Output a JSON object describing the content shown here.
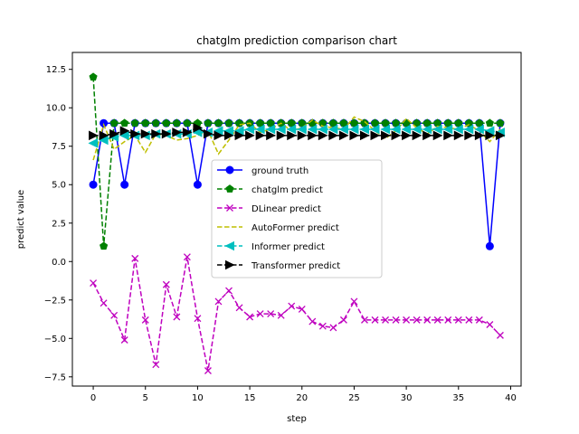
{
  "chart_data": {
    "type": "line",
    "title": "chatglm prediction comparison chart",
    "xlabel": "step",
    "ylabel": "predict value",
    "xlim": [
      -2,
      41
    ],
    "ylim": [
      -8.1,
      13.6
    ],
    "xticks": [
      0,
      5,
      10,
      15,
      20,
      25,
      30,
      35,
      40
    ],
    "yticks": [
      -7.5,
      -5.0,
      -2.5,
      0.0,
      2.5,
      5.0,
      7.5,
      10.0,
      12.5
    ],
    "xtick_labels": [
      "0",
      "5",
      "10",
      "15",
      "20",
      "25",
      "30",
      "35",
      "40"
    ],
    "ytick_labels": [
      "−7.5",
      "−5.0",
      "−2.5",
      "0.0",
      "2.5",
      "5.0",
      "7.5",
      "10.0",
      "12.5"
    ],
    "grid": false,
    "legend_position": "center-right",
    "x": [
      0,
      1,
      2,
      3,
      4,
      5,
      6,
      7,
      8,
      9,
      10,
      11,
      12,
      13,
      14,
      15,
      16,
      17,
      18,
      19,
      20,
      21,
      22,
      23,
      24,
      25,
      26,
      27,
      28,
      29,
      30,
      31,
      32,
      33,
      34,
      35,
      36,
      37,
      38,
      39
    ],
    "series": [
      {
        "name": "ground truth",
        "color": "#0000ff",
        "linestyle": "solid",
        "marker": "circle",
        "values": [
          5,
          9,
          9,
          5,
          9,
          9,
          9,
          9,
          9,
          9,
          5,
          9,
          9,
          9,
          9,
          9,
          9,
          9,
          9,
          9,
          9,
          9,
          9,
          9,
          9,
          9,
          9,
          9,
          9,
          9,
          9,
          9,
          9,
          9,
          9,
          9,
          9,
          9,
          1,
          9
        ]
      },
      {
        "name": "chatglm predict",
        "color": "#008000",
        "linestyle": "dashed",
        "marker": "pentagon",
        "values": [
          12,
          1,
          9,
          9,
          9,
          9,
          9,
          9,
          9,
          9,
          9,
          9,
          9,
          9,
          9,
          9,
          9,
          9,
          9,
          9,
          9,
          9,
          9,
          9,
          9,
          9,
          9,
          9,
          9,
          9,
          9,
          9,
          9,
          9,
          9,
          9,
          9,
          9,
          9,
          9
        ]
      },
      {
        "name": "DLinear predict",
        "color": "#bf00bf",
        "linestyle": "dashed",
        "marker": "x",
        "values": [
          -1.4,
          -2.7,
          -3.5,
          -5.1,
          0.2,
          -3.8,
          -6.7,
          -1.5,
          -3.6,
          0.3,
          -3.7,
          -7.1,
          -2.6,
          -1.9,
          -3.0,
          -3.6,
          -3.4,
          -3.4,
          -3.5,
          -2.9,
          -3.1,
          -3.9,
          -4.2,
          -4.3,
          -3.8,
          -2.6,
          -3.8,
          -3.8,
          -3.8,
          -3.8,
          -3.8,
          -3.8,
          -3.8,
          -3.8,
          -3.8,
          -3.8,
          -3.8,
          -3.8,
          -4.1,
          -4.8
        ]
      },
      {
        "name": "AutoFormer predict",
        "color": "#bfbf00",
        "linestyle": "dashed",
        "marker": "none",
        "values": [
          6.6,
          8.9,
          7.3,
          7.8,
          8.2,
          7.1,
          8.3,
          8.2,
          7.9,
          8.0,
          8.2,
          8.5,
          7.0,
          7.9,
          8.9,
          9.0,
          8.4,
          8.6,
          9.0,
          8.5,
          8.7,
          9.2,
          8.8,
          8.7,
          8.6,
          9.4,
          9.1,
          8.5,
          8.0,
          8.5,
          9.3,
          8.7,
          8.3,
          8.8,
          8.7,
          8.6,
          8.9,
          8.5,
          7.8,
          8.6
        ]
      },
      {
        "name": "Informer predict",
        "color": "#00bfbf",
        "linestyle": "dashed",
        "marker": "triangle-left",
        "values": [
          7.7,
          7.9,
          8.1,
          8.2,
          8.2,
          8.2,
          8.3,
          8.3,
          8.3,
          8.3,
          8.4,
          8.4,
          8.5,
          8.5,
          8.5,
          8.6,
          8.6,
          8.6,
          8.6,
          8.6,
          8.6,
          8.6,
          8.6,
          8.6,
          8.6,
          8.6,
          8.6,
          8.6,
          8.6,
          8.6,
          8.6,
          8.6,
          8.6,
          8.6,
          8.6,
          8.6,
          8.6,
          8.6,
          8.5,
          8.4
        ]
      },
      {
        "name": "Transformer predict",
        "color": "#000000",
        "linestyle": "dashed",
        "marker": "triangle-right",
        "values": [
          8.2,
          8.2,
          8.3,
          8.5,
          8.3,
          8.3,
          8.3,
          8.3,
          8.4,
          8.4,
          8.7,
          8.3,
          8.2,
          8.2,
          8.2,
          8.2,
          8.2,
          8.2,
          8.2,
          8.2,
          8.2,
          8.2,
          8.2,
          8.2,
          8.2,
          8.2,
          8.2,
          8.2,
          8.2,
          8.2,
          8.2,
          8.2,
          8.2,
          8.2,
          8.2,
          8.2,
          8.2,
          8.2,
          8.2,
          8.2
        ]
      }
    ]
  }
}
